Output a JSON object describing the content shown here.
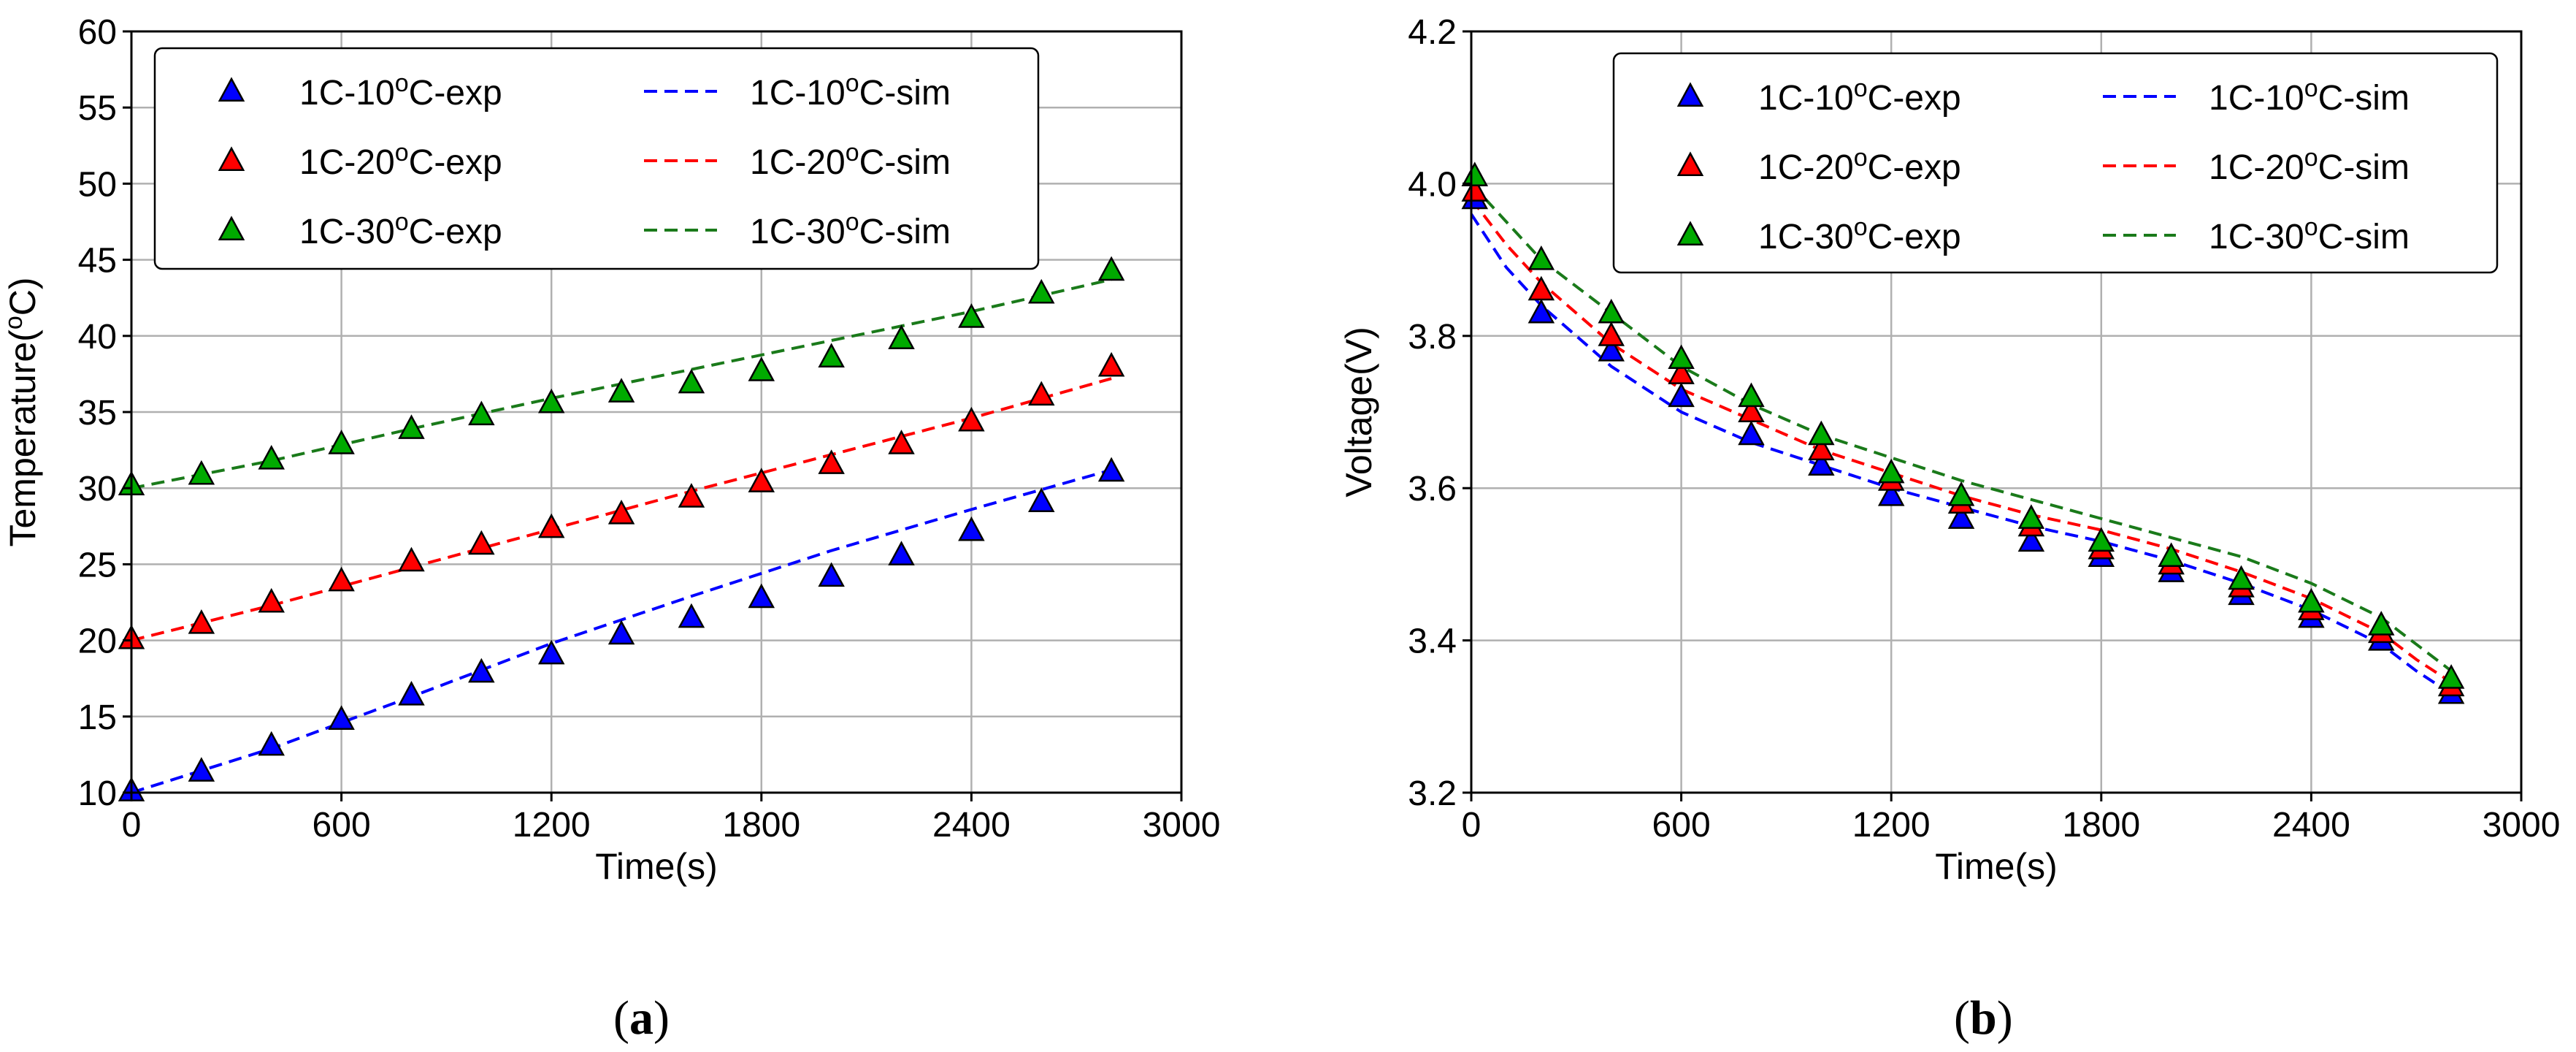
{
  "chart_data": [
    {
      "panel": "a",
      "caption": "a",
      "type": "scatter+line",
      "xlabel": "Time(s)",
      "ylabel": "Temperature(°C)",
      "xlim": [
        0,
        3000
      ],
      "ylim": [
        10,
        60
      ],
      "xticks": [
        0,
        600,
        1200,
        1800,
        2400,
        3000
      ],
      "yticks": [
        10,
        15,
        20,
        25,
        30,
        35,
        40,
        45,
        50,
        55,
        60
      ],
      "grid": true,
      "legend_position": "top-left",
      "exp_series": [
        {
          "name": "1C-10°C-exp",
          "color": "#0000ff",
          "x": [
            0,
            200,
            400,
            600,
            800,
            1000,
            1200,
            1400,
            1600,
            1800,
            2000,
            2200,
            2400,
            2600,
            2800
          ],
          "y": [
            10.1,
            11.4,
            13.1,
            14.8,
            16.4,
            17.9,
            19.1,
            20.4,
            21.5,
            22.8,
            24.2,
            25.6,
            27.2,
            29.1,
            31.1
          ]
        },
        {
          "name": "1C-20°C-exp",
          "color": "#ff0000",
          "x": [
            0,
            200,
            400,
            600,
            800,
            1000,
            1200,
            1400,
            1600,
            1800,
            2000,
            2200,
            2400,
            2600,
            2800
          ],
          "y": [
            20.1,
            21.1,
            22.5,
            23.9,
            25.2,
            26.3,
            27.4,
            28.3,
            29.4,
            30.4,
            31.6,
            32.9,
            34.4,
            36.1,
            38.0
          ]
        },
        {
          "name": "1C-30°C-exp",
          "color": "#00aa00",
          "x": [
            0,
            200,
            400,
            600,
            800,
            1000,
            1200,
            1400,
            1600,
            1800,
            2000,
            2200,
            2400,
            2600,
            2800
          ],
          "y": [
            30.2,
            30.9,
            31.9,
            32.9,
            33.9,
            34.8,
            35.6,
            36.3,
            36.9,
            37.7,
            38.6,
            39.8,
            41.2,
            42.8,
            44.3
          ]
        }
      ],
      "sim_series": [
        {
          "name": "1C-10°C-sim",
          "color": "#0000ff",
          "x": [
            0,
            400,
            800,
            1200,
            1600,
            2000,
            2400,
            2800
          ],
          "y": [
            10.0,
            12.9,
            16.3,
            19.8,
            22.9,
            25.9,
            28.6,
            31.2
          ]
        },
        {
          "name": "1C-20°C-sim",
          "color": "#ff0000",
          "x": [
            0,
            400,
            800,
            1200,
            1600,
            2000,
            2400,
            2800
          ],
          "y": [
            20.0,
            22.3,
            24.8,
            27.3,
            29.8,
            32.2,
            34.6,
            37.2
          ]
        },
        {
          "name": "1C-30°C-sim",
          "color": "#1a7a1a",
          "x": [
            0,
            400,
            800,
            1200,
            1600,
            2000,
            2400,
            2800
          ],
          "y": [
            30.0,
            31.8,
            33.9,
            35.9,
            37.8,
            39.7,
            41.6,
            43.7
          ]
        }
      ]
    },
    {
      "panel": "b",
      "caption": "b",
      "type": "scatter+line",
      "xlabel": "Time(s)",
      "ylabel": "Voltage(V)",
      "xlim": [
        0,
        3000
      ],
      "ylim": [
        3.2,
        4.2
      ],
      "xticks": [
        0,
        600,
        1200,
        1800,
        2400,
        3000
      ],
      "yticks": [
        3.2,
        3.4,
        3.6,
        3.8,
        4.0,
        4.2
      ],
      "ytick_labels": [
        "3.2",
        "3.4",
        "3.6",
        "3.8",
        "4.0",
        "4.2"
      ],
      "grid": true,
      "legend_position": "top-right",
      "exp_series": [
        {
          "name": "1C-10°C-exp",
          "color": "#0000ff",
          "x": [
            10,
            200,
            400,
            600,
            800,
            1000,
            1200,
            1400,
            1600,
            1800,
            2000,
            2200,
            2400,
            2600,
            2800
          ],
          "y": [
            3.98,
            3.83,
            3.78,
            3.72,
            3.67,
            3.63,
            3.59,
            3.56,
            3.53,
            3.51,
            3.49,
            3.46,
            3.43,
            3.4,
            3.33
          ]
        },
        {
          "name": "1C-20°C-exp",
          "color": "#ff0000",
          "x": [
            10,
            200,
            400,
            600,
            800,
            1000,
            1200,
            1400,
            1600,
            1800,
            2000,
            2200,
            2400,
            2600,
            2800
          ],
          "y": [
            3.99,
            3.86,
            3.8,
            3.75,
            3.7,
            3.65,
            3.61,
            3.58,
            3.55,
            3.52,
            3.5,
            3.47,
            3.44,
            3.41,
            3.34
          ]
        },
        {
          "name": "1C-30°C-exp",
          "color": "#00aa00",
          "x": [
            10,
            200,
            400,
            600,
            800,
            1000,
            1200,
            1400,
            1600,
            1800,
            2000,
            2200,
            2400,
            2600,
            2800
          ],
          "y": [
            4.01,
            3.9,
            3.83,
            3.77,
            3.72,
            3.67,
            3.62,
            3.59,
            3.56,
            3.53,
            3.51,
            3.48,
            3.45,
            3.42,
            3.35
          ]
        }
      ],
      "sim_series": [
        {
          "name": "1C-10°C-sim",
          "color": "#0000ff",
          "x": [
            0,
            100,
            200,
            400,
            600,
            800,
            1000,
            1200,
            1400,
            1600,
            1800,
            2000,
            2200,
            2400,
            2600,
            2700,
            2800
          ],
          "y": [
            3.96,
            3.89,
            3.84,
            3.76,
            3.7,
            3.66,
            3.63,
            3.6,
            3.575,
            3.55,
            3.53,
            3.505,
            3.475,
            3.44,
            3.395,
            3.36,
            3.33
          ]
        },
        {
          "name": "1C-20°C-sim",
          "color": "#ff0000",
          "x": [
            0,
            100,
            200,
            400,
            600,
            800,
            1000,
            1200,
            1400,
            1600,
            1800,
            2000,
            2200,
            2400,
            2600,
            2700,
            2800
          ],
          "y": [
            3.98,
            3.92,
            3.87,
            3.79,
            3.73,
            3.69,
            3.65,
            3.62,
            3.59,
            3.565,
            3.545,
            3.52,
            3.49,
            3.455,
            3.41,
            3.375,
            3.345
          ]
        },
        {
          "name": "1C-30°C-sim",
          "color": "#1a7a1a",
          "x": [
            0,
            100,
            200,
            400,
            600,
            800,
            1000,
            1200,
            1400,
            1600,
            1800,
            2000,
            2200,
            2400,
            2600,
            2700,
            2800
          ],
          "y": [
            4.0,
            3.95,
            3.9,
            3.83,
            3.76,
            3.71,
            3.67,
            3.64,
            3.61,
            3.585,
            3.56,
            3.535,
            3.51,
            3.475,
            3.43,
            3.395,
            3.36
          ]
        }
      ]
    }
  ]
}
